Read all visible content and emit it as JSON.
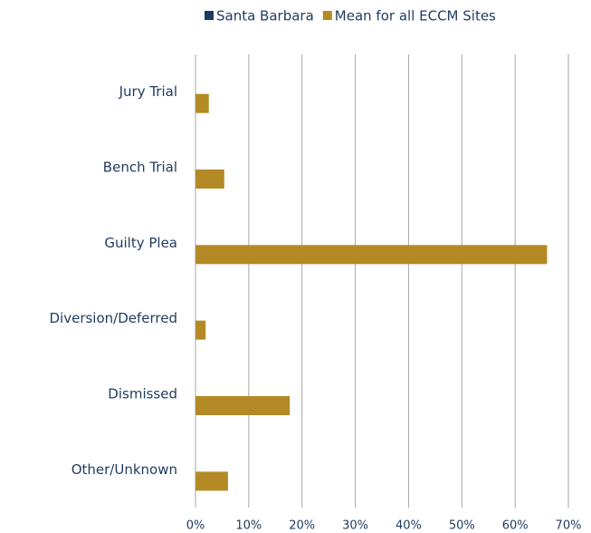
{
  "chart_data": {
    "type": "barh",
    "categories": [
      "Jury Trial",
      "Bench Trial",
      "Guilty Plea",
      "Diversion/Deferred",
      "Dismissed",
      "Other/Unknown"
    ],
    "series": [
      {
        "name": "Santa Barbara",
        "color": "#1f3864",
        "values": [
          0,
          0,
          0,
          0,
          0,
          0
        ]
      },
      {
        "name": "Mean for all ECCM Sites",
        "color": "#b38a26",
        "values": [
          2.5,
          5.4,
          66,
          1.9,
          17.7,
          6.1
        ]
      }
    ],
    "xlim": [
      0,
      70
    ],
    "xticks": [
      {
        "value": 0,
        "label": "0%"
      },
      {
        "value": 10,
        "label": "10%"
      },
      {
        "value": 20,
        "label": "20%"
      },
      {
        "value": 30,
        "label": "30%"
      },
      {
        "value": 40,
        "label": "40%"
      },
      {
        "value": 50,
        "label": "50%"
      },
      {
        "value": 60,
        "label": "60%"
      },
      {
        "value": 70,
        "label": "70%"
      }
    ],
    "grid": true,
    "legend": "top"
  }
}
